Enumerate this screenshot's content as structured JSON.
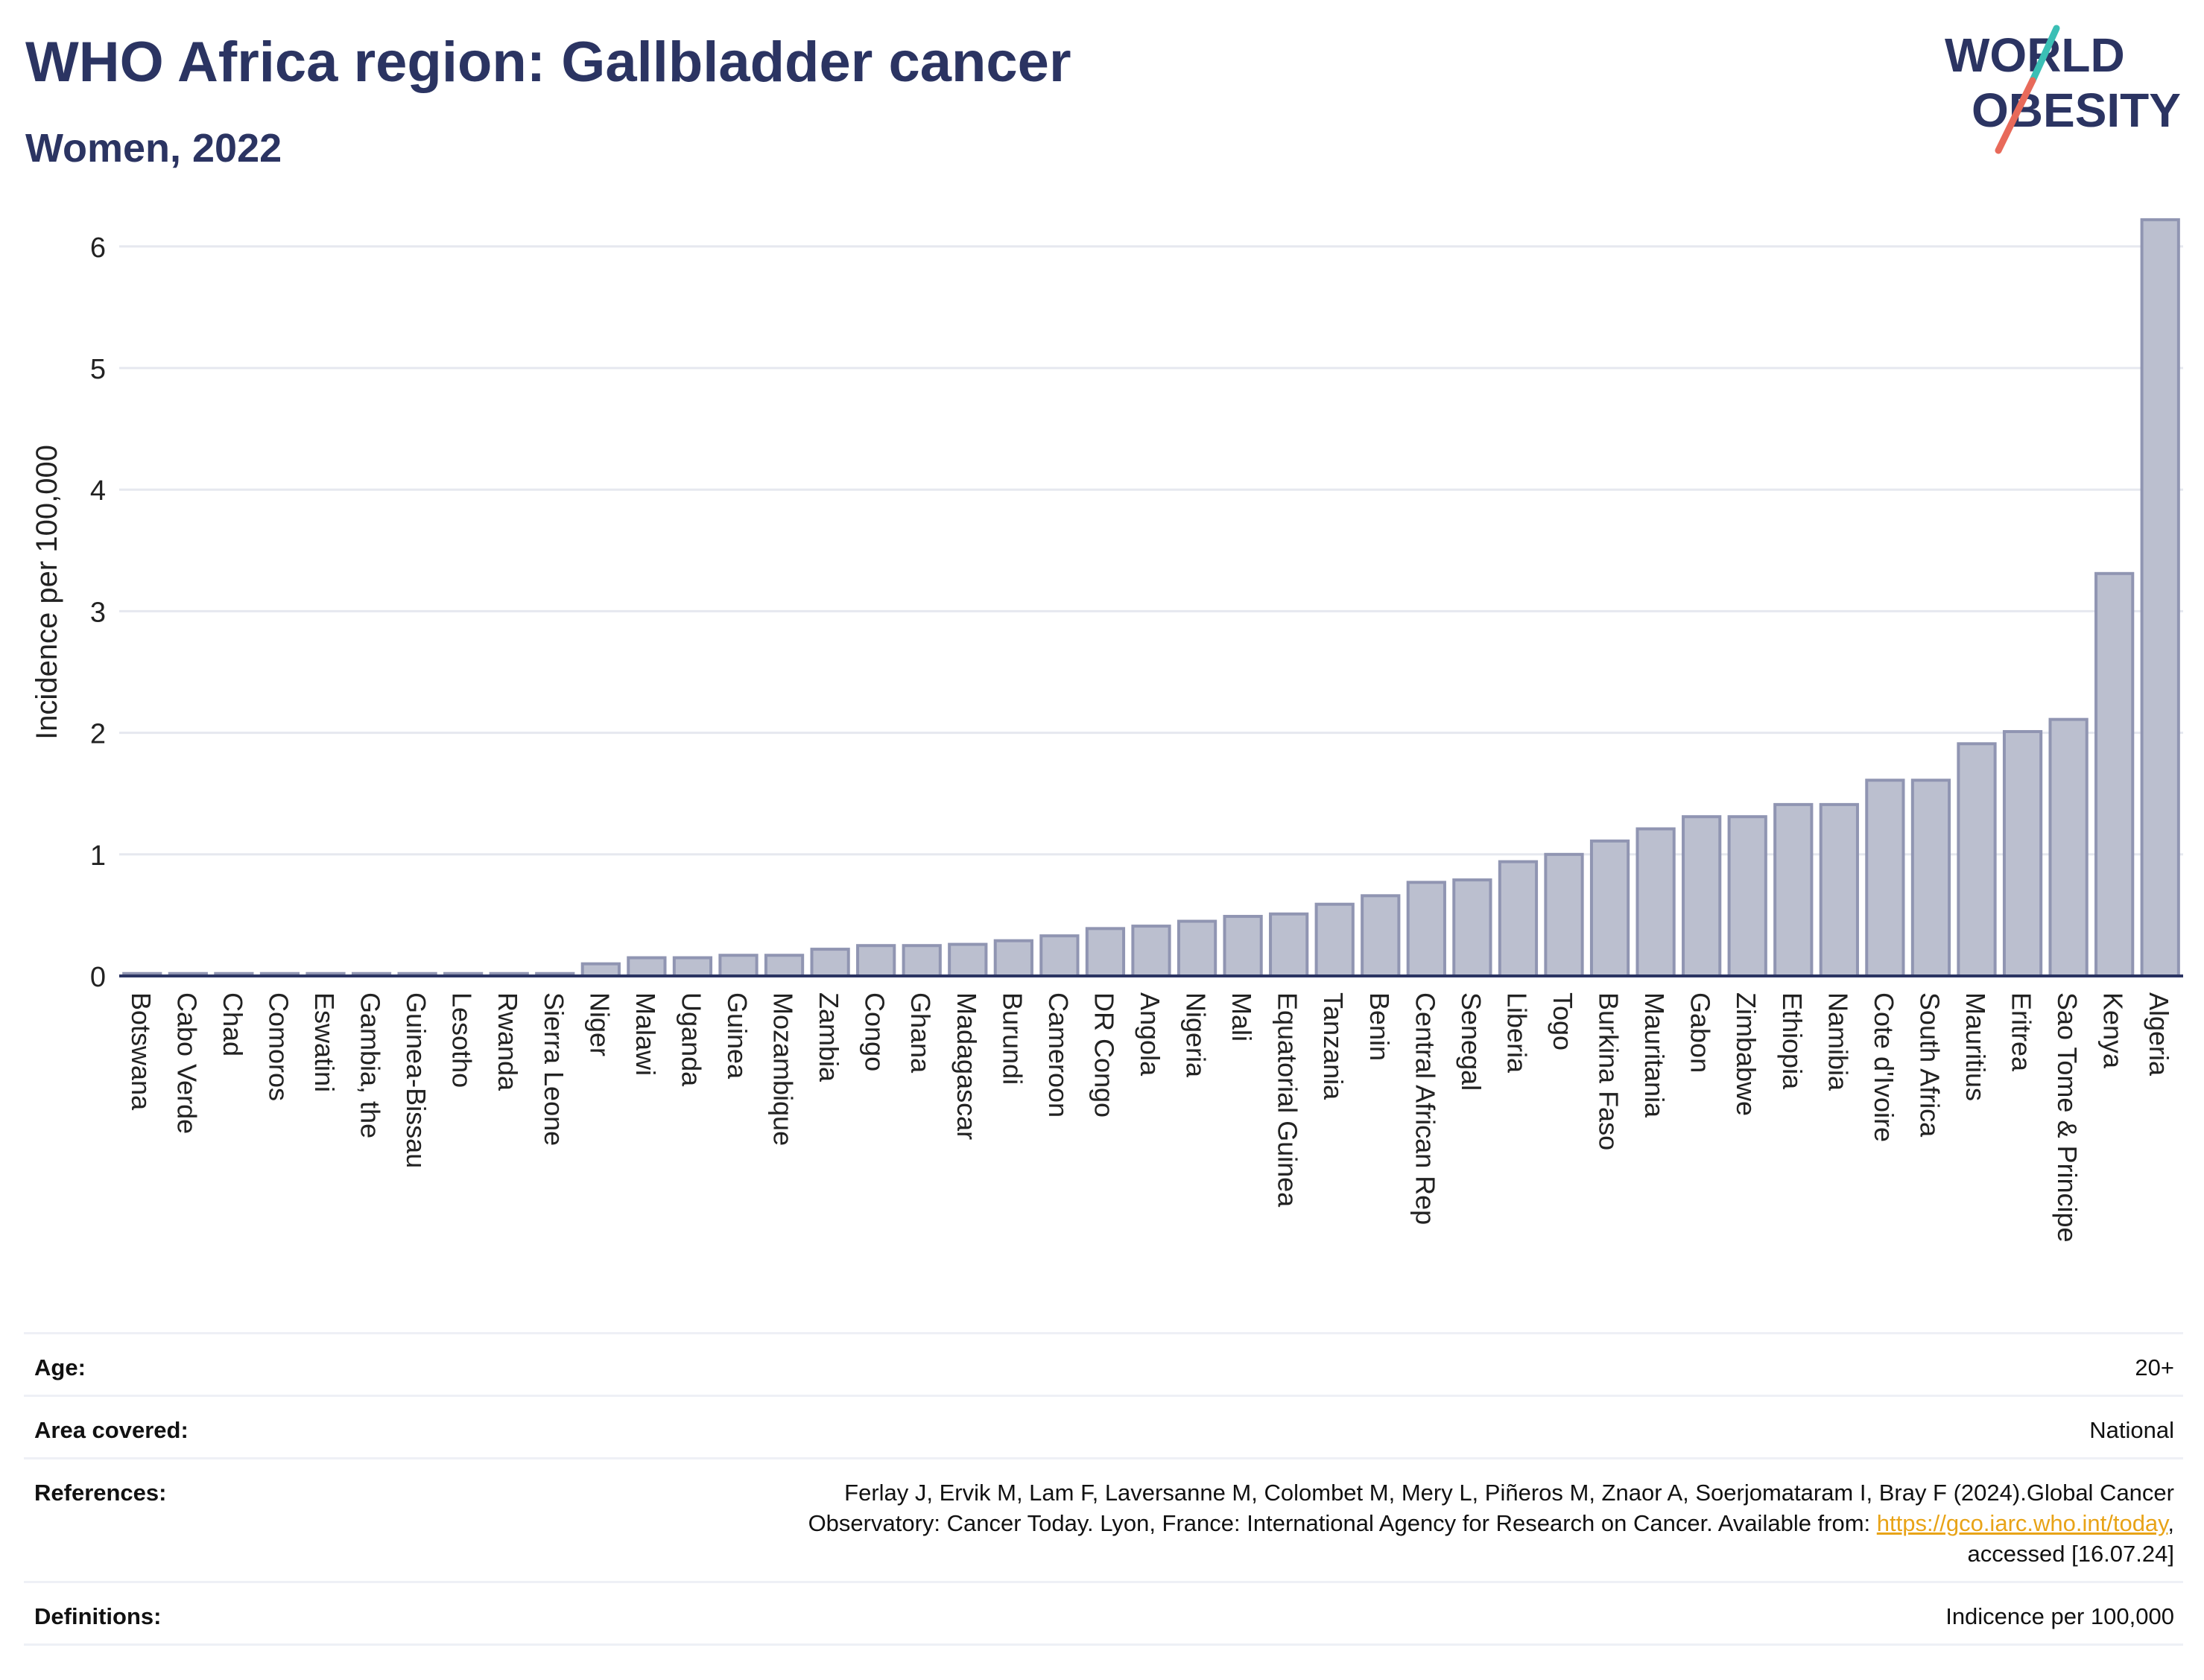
{
  "header": {
    "title": "WHO Africa region: Gallbladder cancer",
    "subtitle": "Women, 2022"
  },
  "logo": {
    "line1": "WORLD",
    "line2": "OBESITY",
    "colors": {
      "text": "#2b3462",
      "teal": "#3bbfb5",
      "coral": "#e86a5a"
    }
  },
  "chart_data": {
    "type": "bar",
    "ylabel": "Incidence per 100,000",
    "xlabel": "",
    "ylim": [
      0,
      6.25
    ],
    "yticks": [
      0,
      1,
      2,
      3,
      4,
      5,
      6
    ],
    "grid": true,
    "bar_fill": "#bbbfcf",
    "bar_stroke": "#9095b2",
    "categories": [
      "Botswana",
      "Cabo Verde",
      "Chad",
      "Comoros",
      "Eswatini",
      "Gambia, the",
      "Guinea-Bissau",
      "Lesotho",
      "Rwanda",
      "Sierra Leone",
      "Niger",
      "Malawi",
      "Uganda",
      "Guinea",
      "Mozambique",
      "Zambia",
      "Congo",
      "Ghana",
      "Madagascar",
      "Burundi",
      "Cameroon",
      "DR Congo",
      "Angola",
      "Nigeria",
      "Mali",
      "Equatorial Guinea",
      "Tanzania",
      "Benin",
      "Central African Rep",
      "Senegal",
      "Liberia",
      "Togo",
      "Burkina Faso",
      "Mauritania",
      "Gabon",
      "Zimbabwe",
      "Ethiopia",
      "Namibia",
      "Cote d'Ivoire",
      "South Africa",
      "Mauritius",
      "Eritrea",
      "Sao Tome & Principe",
      "Kenya",
      "Algeria"
    ],
    "values": [
      0.02,
      0.02,
      0.02,
      0.02,
      0.02,
      0.02,
      0.02,
      0.02,
      0.02,
      0.02,
      0.1,
      0.15,
      0.15,
      0.17,
      0.17,
      0.22,
      0.25,
      0.25,
      0.26,
      0.29,
      0.33,
      0.39,
      0.41,
      0.45,
      0.49,
      0.51,
      0.59,
      0.66,
      0.77,
      0.79,
      0.94,
      1.0,
      1.11,
      1.21,
      1.31,
      1.31,
      1.41,
      1.41,
      1.61,
      1.61,
      1.91,
      2.01,
      2.11,
      3.31,
      6.22
    ]
  },
  "meta": {
    "age_label": "Age:",
    "age_value": "20+",
    "area_label": "Area covered:",
    "area_value": "National",
    "references_label": "References:",
    "references_line1": "Ferlay J, Ervik M, Lam F, Laversanne M, Colombet M, Mery L, Piñeros M, Znaor A, Soerjomataram I, Bray F (2024).Global Cancer",
    "references_line2_prefix": "Observatory: Cancer Today. Lyon, France: International Agency for Research on Cancer. Available from: ",
    "references_link": "https://gco.iarc.who.int/today",
    "references_line2_suffix": ",",
    "references_line3": "accessed [16.07.24]",
    "definitions_label": "Definitions:",
    "definitions_value": "Indicence per 100,000"
  }
}
